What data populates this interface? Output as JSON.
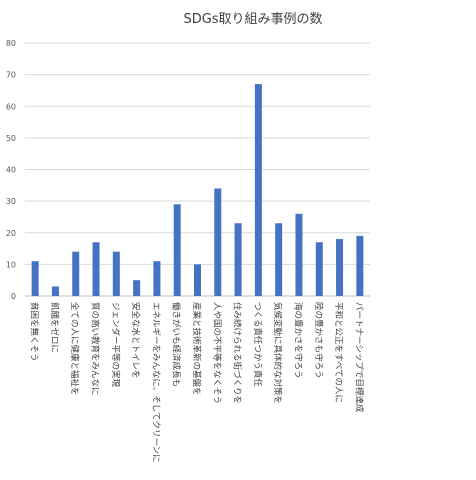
{
  "chart_data": {
    "type": "bar",
    "title": "SDGs取り組み事例の数",
    "xlabel": "",
    "ylabel": "",
    "ylim": [
      0,
      80
    ],
    "yticks": [
      0,
      10,
      20,
      30,
      40,
      50,
      60,
      70,
      80
    ],
    "grid": true,
    "legend": "none",
    "bar_color": "#4472c4",
    "categories": [
      "貧困を無くそう",
      "飢餓をゼロに",
      "全ての人に健康と福祉を",
      "質の高い教育をみんなに",
      "ジェンダー平等の実現",
      "安全な水とトイレを",
      "エネルギーをみんなに、そしてクリーンに",
      "働きがいも経済成長も",
      "産業と技術革新の基盤を",
      "人や国の不平等をなくそう",
      "住み続けられる街づくりを",
      "つくる責任つかう責任",
      "気候変動に具体的な対策を",
      "海の豊かさを守ろう",
      "陸の豊かさも守ろう",
      "平和と公正をすべての人に",
      "パートナーシップで目標達成"
    ],
    "values": [
      11,
      3,
      14,
      17,
      14,
      5,
      11,
      29,
      10,
      34,
      23,
      67,
      23,
      26,
      17,
      18,
      19
    ]
  }
}
